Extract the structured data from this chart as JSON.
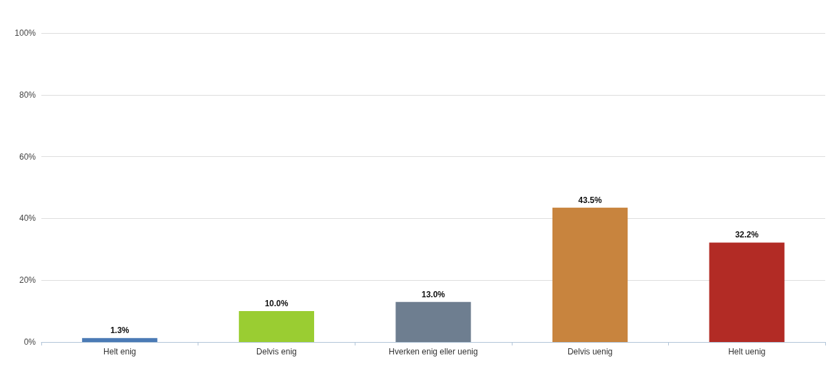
{
  "chart_data": {
    "type": "bar",
    "categories": [
      "Helt enig",
      "Delvis enig",
      "Hverken enig eller uenig",
      "Delvis uenig",
      "Helt uenig"
    ],
    "values": [
      1.3,
      10.0,
      13.0,
      43.5,
      32.2
    ],
    "colors": [
      "#4a7ab5",
      "#9acd32",
      "#6e7e90",
      "#c8843e",
      "#b22b25"
    ],
    "value_labels": [
      "1.3%",
      "10.0%",
      "13.0%",
      "43.5%",
      "32.2%"
    ],
    "ylim": [
      0,
      100
    ],
    "yticks": [
      {
        "value": 0,
        "label": "0%"
      },
      {
        "value": 20,
        "label": "20%"
      },
      {
        "value": 40,
        "label": "40%"
      },
      {
        "value": 60,
        "label": "60%"
      },
      {
        "value": 80,
        "label": "80%"
      },
      {
        "value": 100,
        "label": "100%"
      }
    ],
    "grid": "y"
  }
}
